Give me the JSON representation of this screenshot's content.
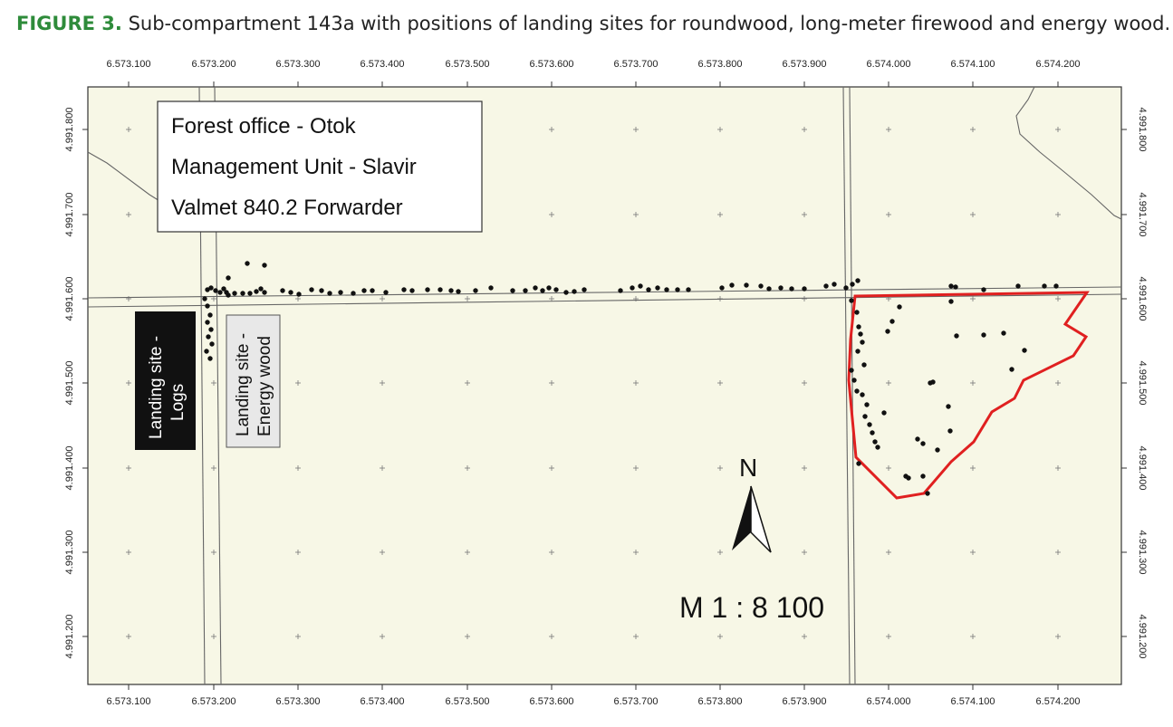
{
  "caption": {
    "figure_label": "FIGURE 3.",
    "text": "Sub-compartment 143a with positions of landing sites for roundwood, long-meter firewood and energy wood."
  },
  "map": {
    "x_ticks": [
      "6.573.100",
      "6.573.200",
      "6.573.300",
      "6.573.400",
      "6.573.500",
      "6.573.600",
      "6.573.700",
      "6.573.800",
      "6.573.900",
      "6.574.000",
      "6.574.100",
      "6.574.200"
    ],
    "y_ticks": [
      "4.991.800",
      "4.991.700",
      "4.991.600",
      "4.991.500",
      "4.991.400",
      "4.991.300",
      "4.991.200"
    ],
    "info_lines": [
      "Forest office - Otok",
      "Management Unit - Slavir",
      "Valmet 840.2 Forwarder"
    ],
    "landing_logs": [
      "Landing site -",
      "Logs"
    ],
    "landing_energy": [
      "Landing site -",
      "Energy wood"
    ],
    "north_label": "N",
    "scale_label": "M 1 : 8 100",
    "colors": {
      "background": "#f7f7e6",
      "boundary": "#e02020",
      "points": "#111111",
      "roads": "#666666"
    }
  }
}
